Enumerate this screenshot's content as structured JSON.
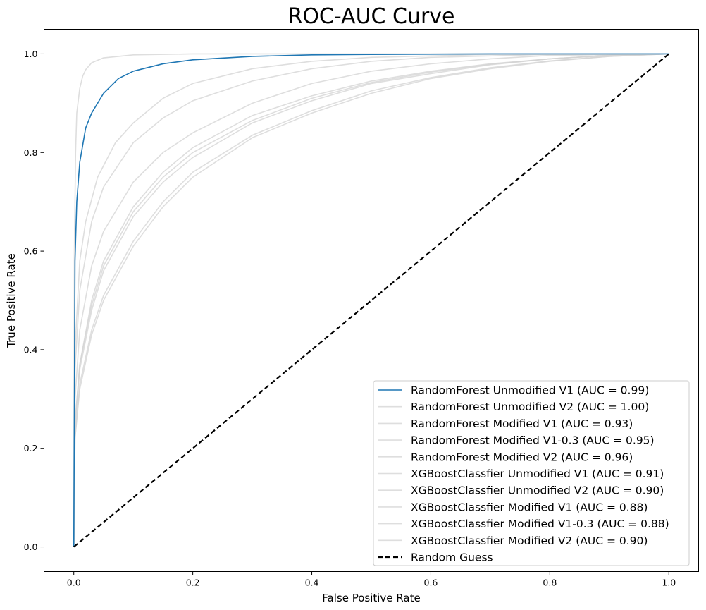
{
  "chart_data": {
    "type": "line",
    "title": "ROC-AUC Curve",
    "xlabel": "False Positive Rate",
    "ylabel": "True Positive Rate",
    "xlim": [
      -0.05,
      1.05
    ],
    "ylim": [
      -0.05,
      1.05
    ],
    "xticks": [
      0.0,
      0.2,
      0.4,
      0.6,
      0.8,
      1.0
    ],
    "yticks": [
      0.0,
      0.2,
      0.4,
      0.6,
      0.8,
      1.0
    ],
    "grid": false,
    "legend_position": "lower-right",
    "colors": {
      "highlight": "#1f77b4",
      "faded": "#d3d3d3",
      "baseline": "#000000",
      "axes": "#000000"
    },
    "series": [
      {
        "name": "RandomForest Unmodified V1 (AUC = 0.99)",
        "style": "highlight",
        "x": [
          0,
          0.002,
          0.005,
          0.01,
          0.02,
          0.03,
          0.05,
          0.075,
          0.1,
          0.15,
          0.2,
          0.3,
          0.4,
          0.5,
          0.7,
          1.0
        ],
        "y": [
          0,
          0.58,
          0.7,
          0.78,
          0.85,
          0.88,
          0.92,
          0.95,
          0.965,
          0.98,
          0.988,
          0.995,
          0.998,
          0.999,
          1.0,
          1.0
        ]
      },
      {
        "name": "RandomForest Unmodified V2 (AUC = 1.00)",
        "style": "faded",
        "x": [
          0,
          0.001,
          0.003,
          0.005,
          0.01,
          0.015,
          0.02,
          0.03,
          0.05,
          0.1,
          0.2,
          0.4,
          1.0
        ],
        "y": [
          0,
          0.6,
          0.8,
          0.88,
          0.93,
          0.955,
          0.968,
          0.982,
          0.992,
          0.998,
          1.0,
          1.0,
          1.0
        ]
      },
      {
        "name": "RandomForest Modified V1 (AUC = 0.93)",
        "style": "faded",
        "x": [
          0,
          0.002,
          0.01,
          0.03,
          0.05,
          0.1,
          0.15,
          0.2,
          0.3,
          0.4,
          0.5,
          0.6,
          0.7,
          0.8,
          1.0
        ],
        "y": [
          0,
          0.3,
          0.44,
          0.57,
          0.64,
          0.74,
          0.8,
          0.84,
          0.9,
          0.94,
          0.965,
          0.98,
          0.99,
          0.997,
          1.0
        ]
      },
      {
        "name": "RandomForest Modified V1-0.3 (AUC = 0.95)",
        "style": "faded",
        "x": [
          0,
          0.002,
          0.01,
          0.03,
          0.05,
          0.1,
          0.15,
          0.2,
          0.3,
          0.4,
          0.5,
          0.6,
          0.8,
          1.0
        ],
        "y": [
          0,
          0.36,
          0.52,
          0.66,
          0.73,
          0.82,
          0.87,
          0.905,
          0.945,
          0.97,
          0.985,
          0.993,
          0.999,
          1.0
        ]
      },
      {
        "name": "RandomForest Modified V2 (AUC = 0.96)",
        "style": "faded",
        "x": [
          0,
          0.002,
          0.01,
          0.02,
          0.04,
          0.07,
          0.1,
          0.15,
          0.2,
          0.3,
          0.4,
          0.5,
          0.7,
          1.0
        ],
        "y": [
          0,
          0.4,
          0.58,
          0.66,
          0.75,
          0.82,
          0.86,
          0.91,
          0.94,
          0.97,
          0.985,
          0.993,
          0.999,
          1.0
        ]
      },
      {
        "name": "XGBoostClassfier Unmodified V1 (AUC = 0.91)",
        "style": "faded",
        "x": [
          0,
          0.002,
          0.01,
          0.03,
          0.05,
          0.1,
          0.15,
          0.2,
          0.3,
          0.4,
          0.5,
          0.6,
          0.7,
          0.8,
          0.9,
          1.0
        ],
        "y": [
          0,
          0.25,
          0.37,
          0.5,
          0.58,
          0.69,
          0.76,
          0.81,
          0.875,
          0.915,
          0.945,
          0.965,
          0.98,
          0.99,
          0.997,
          1.0
        ]
      },
      {
        "name": "XGBoostClassfier Unmodified V2 (AUC = 0.90)",
        "style": "faded",
        "x": [
          0,
          0.002,
          0.01,
          0.03,
          0.05,
          0.1,
          0.15,
          0.2,
          0.3,
          0.4,
          0.5,
          0.6,
          0.7,
          0.8,
          0.9,
          1.0
        ],
        "y": [
          0,
          0.24,
          0.36,
          0.48,
          0.56,
          0.67,
          0.74,
          0.79,
          0.86,
          0.905,
          0.94,
          0.96,
          0.978,
          0.99,
          0.997,
          1.0
        ]
      },
      {
        "name": "XGBoostClassfier Modified V1 (AUC = 0.88)",
        "style": "faded",
        "x": [
          0,
          0.002,
          0.01,
          0.03,
          0.05,
          0.1,
          0.15,
          0.2,
          0.3,
          0.4,
          0.5,
          0.6,
          0.7,
          0.8,
          0.9,
          1.0
        ],
        "y": [
          0,
          0.22,
          0.32,
          0.43,
          0.5,
          0.61,
          0.69,
          0.75,
          0.83,
          0.88,
          0.92,
          0.95,
          0.97,
          0.985,
          0.995,
          1.0
        ]
      },
      {
        "name": "XGBoostClassfier Modified V1-0.3 (AUC = 0.88)",
        "style": "faded",
        "x": [
          0,
          0.002,
          0.01,
          0.03,
          0.05,
          0.1,
          0.15,
          0.2,
          0.3,
          0.4,
          0.5,
          0.6,
          0.7,
          0.8,
          0.9,
          1.0
        ],
        "y": [
          0,
          0.22,
          0.33,
          0.44,
          0.51,
          0.62,
          0.7,
          0.76,
          0.835,
          0.885,
          0.925,
          0.952,
          0.972,
          0.986,
          0.995,
          1.0
        ]
      },
      {
        "name": "XGBoostClassfier Modified V2 (AUC = 0.90)",
        "style": "faded",
        "x": [
          0,
          0.002,
          0.01,
          0.03,
          0.05,
          0.1,
          0.15,
          0.2,
          0.3,
          0.4,
          0.5,
          0.6,
          0.7,
          0.8,
          0.9,
          1.0
        ],
        "y": [
          0,
          0.25,
          0.37,
          0.49,
          0.57,
          0.68,
          0.75,
          0.8,
          0.865,
          0.91,
          0.942,
          0.963,
          0.979,
          0.99,
          0.997,
          1.0
        ]
      },
      {
        "name": "Random Guess",
        "style": "baseline",
        "x": [
          0,
          1
        ],
        "y": [
          0,
          1
        ]
      }
    ]
  }
}
